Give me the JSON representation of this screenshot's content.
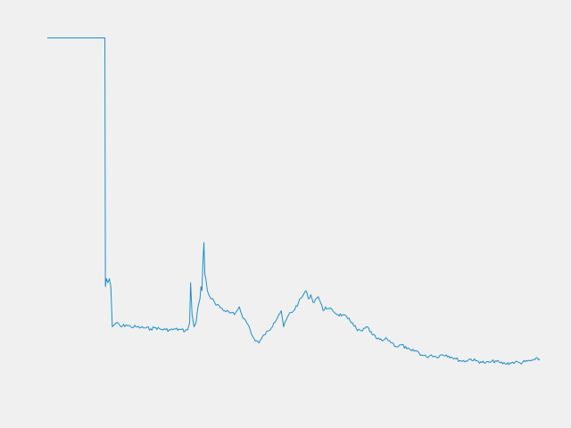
{
  "chart_data": {
    "type": "line",
    "title": "",
    "xlabel": "",
    "ylabel": "",
    "grid": false,
    "axes_visible": false,
    "xlim": [
      0,
      100
    ],
    "ylim": [
      0,
      100
    ],
    "series": [
      {
        "color": "#1f8fcb",
        "x": [
          0,
          11.4,
          11.7,
          11.8,
          12.0,
          12.3,
          12.6,
          12.9,
          13.2,
          14,
          15,
          16,
          17,
          18,
          19,
          20,
          21,
          22,
          23,
          24,
          25,
          26,
          27,
          28,
          28.5,
          28.9,
          29.1,
          29.4,
          29.8,
          30.2,
          30.6,
          31.0,
          31.2,
          31.4,
          31.6,
          31.8,
          32.0,
          32.2,
          32.5,
          32.8,
          33.2,
          33.6,
          34,
          35,
          36,
          37,
          38,
          38.5,
          39,
          39.5,
          40,
          40.5,
          41,
          41.5,
          42,
          43,
          43.5,
          44,
          45,
          46,
          47,
          47.5,
          48,
          49,
          50,
          51,
          52,
          52.5,
          53,
          53.5,
          54,
          54.5,
          55,
          55.5,
          56,
          56.5,
          57,
          58,
          59,
          60,
          61,
          62,
          63,
          64,
          65,
          66,
          67,
          68,
          69,
          70,
          71,
          72,
          73,
          74,
          75,
          76,
          77,
          78,
          79,
          80,
          81,
          82,
          83,
          84,
          85,
          86,
          87,
          88,
          89,
          90,
          91,
          92,
          93,
          94,
          95,
          96,
          97,
          98,
          99,
          100
        ],
        "y": [
          95,
          95,
          95,
          33,
          35,
          34,
          35,
          33,
          23,
          24,
          23,
          23.5,
          23,
          23,
          22.8,
          22.7,
          22.5,
          22.8,
          22.4,
          22.3,
          22.2,
          22.4,
          22.3,
          22,
          22.2,
          24,
          34,
          26,
          23,
          24,
          28,
          30,
          33,
          32,
          39,
          44,
          36,
          35,
          32,
          31,
          30,
          30,
          29,
          28,
          27,
          26.5,
          26,
          27,
          28,
          26,
          25,
          24,
          23,
          21,
          20,
          19,
          20,
          21,
          22,
          24,
          26,
          27,
          23,
          26,
          27,
          29,
          31,
          32,
          30,
          31,
          29,
          30,
          30.5,
          29,
          27,
          28,
          27.5,
          27,
          26,
          26,
          25,
          24,
          22,
          22,
          23,
          21,
          20,
          19.5,
          20,
          19,
          18,
          18.5,
          17.5,
          17,
          17,
          16,
          15.5,
          16,
          15.5,
          16,
          16,
          15.5,
          15,
          14.5,
          14.5,
          15,
          14.5,
          14.3,
          14,
          14.2,
          14.5,
          14,
          13.8,
          14,
          14.2,
          14,
          14.3,
          14.5,
          14.8,
          15
        ]
      }
    ]
  }
}
